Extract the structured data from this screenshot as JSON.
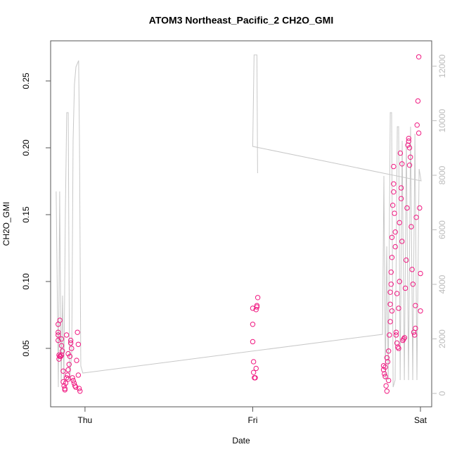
{
  "chart_data": {
    "type": "scatter",
    "title": "ATOM3 Northeast_Pacific_2 CH2O_GMI",
    "xlabel": "Date",
    "ylabel": "CH2O_GMI",
    "xlim": [
      -0.205,
      2.067
    ],
    "xticks": [
      {
        "value": 0,
        "label": "Thu"
      },
      {
        "value": 1,
        "label": "Fri"
      },
      {
        "value": 2,
        "label": "Sat"
      }
    ],
    "ylim": [
      0.0063,
      0.28
    ],
    "yticks": [
      0.05,
      {
        "value": 0.1,
        "label": "0.10"
      },
      0.15,
      {
        "value": 0.2,
        "label": "0.20"
      },
      0.25
    ],
    "y2lim": [
      -490,
      12930
    ],
    "y2ticks": [
      0,
      2000,
      4000,
      6000,
      8000,
      10000,
      12000
    ],
    "series": [
      {
        "type": "scatter",
        "color": "#f01880",
        "x": [
          -0.16,
          -0.16,
          -0.16,
          -0.16,
          -0.155,
          -0.155,
          -0.15,
          -0.15,
          -0.145,
          -0.14,
          -0.14,
          -0.135,
          -0.13,
          -0.13,
          -0.125,
          -0.12,
          -0.12,
          -0.115,
          -0.11,
          -0.105,
          -0.1,
          -0.1,
          -0.095,
          -0.09,
          -0.085,
          -0.085,
          -0.08,
          -0.075,
          -0.07,
          -0.065,
          -0.06,
          -0.055,
          -0.05,
          -0.045,
          -0.04,
          -0.04,
          -0.035,
          -0.03,
          -0.1,
          -0.11,
          -0.14,
          1.0,
          1.0,
          1.0,
          1.005,
          1.005,
          1.01,
          1.015,
          1.02,
          1.02,
          1.025,
          1.03,
          1.025,
          1.78,
          1.78,
          1.785,
          1.79,
          1.79,
          1.795,
          1.8,
          1.8,
          1.805,
          1.81,
          1.81,
          1.815,
          1.82,
          1.82,
          1.825,
          1.825,
          1.83,
          1.83,
          1.835,
          1.84,
          1.84,
          1.845,
          1.85,
          1.85,
          1.855,
          1.855,
          1.86,
          1.865,
          1.87,
          1.87,
          1.875,
          1.88,
          1.885,
          1.885,
          1.89,
          1.89,
          1.895,
          1.9,
          1.905,
          1.91,
          1.915,
          1.92,
          1.925,
          1.93,
          1.935,
          1.94,
          1.945,
          1.95,
          1.955,
          1.96,
          1.965,
          1.97,
          1.97,
          1.975,
          1.98,
          1.985,
          1.99,
          1.99,
          1.995,
          2.0,
          2.0,
          1.93,
          1.935,
          1.86,
          1.875,
          1.84,
          1.82,
          1.83
        ],
        "values": [
          0.068,
          0.062,
          0.06,
          0.056,
          0.045,
          0.042,
          0.071,
          0.044,
          0.044,
          0.045,
          0.052,
          0.048,
          0.033,
          0.025,
          0.022,
          0.02,
          0.019,
          0.024,
          0.028,
          0.03,
          0.034,
          0.046,
          0.038,
          0.044,
          0.056,
          0.054,
          0.05,
          0.028,
          0.026,
          0.024,
          0.022,
          0.021,
          0.041,
          0.062,
          0.053,
          0.03,
          0.02,
          0.018,
          0.027,
          0.06,
          0.057,
          0.08,
          0.068,
          0.055,
          0.04,
          0.032,
          0.028,
          0.028,
          0.035,
          0.079,
          0.082,
          0.088,
          0.081,
          0.037,
          0.034,
          0.031,
          0.036,
          0.029,
          0.022,
          0.018,
          0.043,
          0.04,
          0.026,
          0.048,
          0.06,
          0.07,
          0.083,
          0.098,
          0.107,
          0.118,
          0.133,
          0.157,
          0.173,
          0.186,
          0.151,
          0.137,
          0.126,
          0.062,
          0.06,
          0.054,
          0.051,
          0.05,
          0.08,
          0.144,
          0.196,
          0.17,
          0.162,
          0.188,
          0.13,
          0.056,
          0.057,
          0.058,
          0.095,
          0.116,
          0.155,
          0.202,
          0.207,
          0.2,
          0.193,
          0.141,
          0.109,
          0.098,
          0.062,
          0.06,
          0.065,
          0.082,
          0.148,
          0.217,
          0.235,
          0.268,
          0.211,
          0.155,
          0.106,
          0.078,
          0.205,
          0.187,
          0.091,
          0.1,
          0.167,
          0.092,
          0.078
        ]
      },
      {
        "type": "line",
        "axis": "y2",
        "color": "#c8c8c8",
        "x": [
          -0.172,
          -0.159,
          -0.151,
          -0.142,
          -0.134,
          -0.126,
          -0.117,
          -0.109,
          -0.1,
          -0.092,
          -0.079,
          -0.071,
          -0.063,
          -0.054,
          -0.038,
          -0.033,
          -0.025,
          -0.013,
          1.774,
          1.782,
          1.791,
          1.799,
          1.808,
          1.82,
          1.828,
          1.837,
          1.849,
          1.862,
          1.87,
          1.879,
          1.891,
          1.904,
          1.916,
          1.929,
          1.941,
          1.954,
          1.967,
          1.979,
          1.992,
          2.004,
          1.0,
          1.008,
          1.025,
          1.029
        ],
        "values": [
          7406,
          232,
          7406,
          361,
          3587,
          490,
          6684,
          10297,
          10297,
          490,
          1523,
          9264,
          11329,
          11974,
          12206,
          9264,
          1006,
          748,
          2168,
          7974,
          490,
          5393,
          490,
          10297,
          10297,
          232,
          490,
          9781,
          9781,
          490,
          9264,
          490,
          9264,
          490,
          9781,
          490,
          9523,
          490,
          8232,
          7793,
          9058,
          12413,
          12413,
          8077
        ]
      }
    ]
  }
}
